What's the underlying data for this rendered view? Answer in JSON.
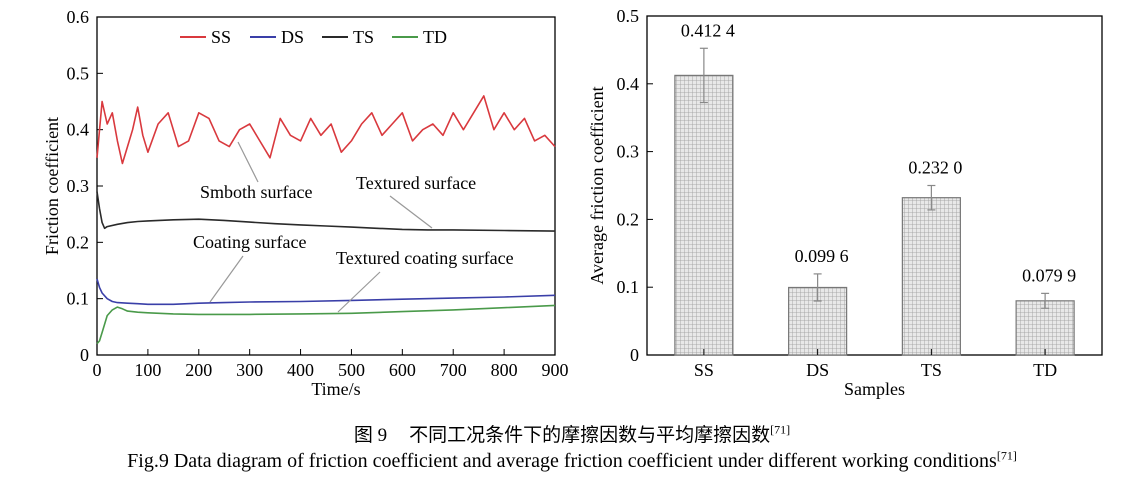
{
  "chart_data": [
    {
      "type": "line",
      "xlabel": "Time/s",
      "ylabel": "Friction coefficient",
      "xlim": [
        0,
        900
      ],
      "ylim": [
        0,
        0.6
      ],
      "xticks": [
        "0",
        "100",
        "200",
        "300",
        "400",
        "500",
        "600",
        "700",
        "800",
        "900"
      ],
      "yticks": [
        "0",
        "0.1",
        "0.2",
        "0.3",
        "0.4",
        "0.5",
        "0.6"
      ],
      "legend_position": "top",
      "series": [
        {
          "name": "SS",
          "color": "#d9393e",
          "x": [
            0,
            10,
            20,
            30,
            40,
            50,
            60,
            70,
            80,
            90,
            100,
            120,
            140,
            160,
            180,
            200,
            220,
            240,
            260,
            280,
            300,
            320,
            340,
            360,
            380,
            400,
            420,
            440,
            460,
            480,
            500,
            520,
            540,
            560,
            580,
            600,
            620,
            640,
            660,
            680,
            700,
            720,
            740,
            760,
            780,
            800,
            820,
            840,
            860,
            880,
            900
          ],
          "values": [
            0.35,
            0.45,
            0.41,
            0.43,
            0.38,
            0.34,
            0.37,
            0.4,
            0.44,
            0.39,
            0.36,
            0.41,
            0.43,
            0.37,
            0.38,
            0.43,
            0.42,
            0.38,
            0.37,
            0.4,
            0.41,
            0.38,
            0.35,
            0.42,
            0.39,
            0.38,
            0.42,
            0.39,
            0.41,
            0.36,
            0.38,
            0.41,
            0.43,
            0.39,
            0.41,
            0.43,
            0.38,
            0.4,
            0.41,
            0.39,
            0.43,
            0.4,
            0.43,
            0.46,
            0.4,
            0.43,
            0.4,
            0.42,
            0.38,
            0.39,
            0.37
          ]
        },
        {
          "name": "DS",
          "color": "#3a3fa8",
          "x": [
            0,
            5,
            10,
            20,
            30,
            40,
            60,
            80,
            100,
            150,
            200,
            250,
            300,
            400,
            500,
            600,
            700,
            800,
            900
          ],
          "values": [
            0.135,
            0.12,
            0.11,
            0.1,
            0.095,
            0.093,
            0.092,
            0.091,
            0.09,
            0.09,
            0.092,
            0.093,
            0.094,
            0.095,
            0.097,
            0.099,
            0.101,
            0.103,
            0.106
          ]
        },
        {
          "name": "TS",
          "color": "#2a2a2a",
          "x": [
            0,
            5,
            10,
            15,
            20,
            40,
            60,
            80,
            100,
            150,
            200,
            250,
            300,
            350,
            400,
            450,
            500,
            550,
            600,
            650,
            700,
            800,
            900
          ],
          "values": [
            0.29,
            0.26,
            0.235,
            0.225,
            0.228,
            0.232,
            0.235,
            0.237,
            0.238,
            0.24,
            0.241,
            0.239,
            0.236,
            0.233,
            0.231,
            0.229,
            0.227,
            0.225,
            0.223,
            0.222,
            0.222,
            0.221,
            0.22
          ]
        },
        {
          "name": "TD",
          "color": "#4a9a4a",
          "x": [
            0,
            5,
            10,
            20,
            30,
            40,
            50,
            60,
            80,
            100,
            150,
            200,
            250,
            300,
            400,
            500,
            600,
            700,
            800,
            900
          ],
          "values": [
            0.02,
            0.025,
            0.04,
            0.07,
            0.08,
            0.085,
            0.082,
            0.078,
            0.076,
            0.075,
            0.073,
            0.072,
            0.072,
            0.072,
            0.073,
            0.074,
            0.077,
            0.08,
            0.084,
            0.088
          ]
        }
      ],
      "annotations": [
        "Smboth surface",
        "Textured surface",
        "Coating surface",
        "Textured coating surface"
      ]
    },
    {
      "type": "bar",
      "xlabel": "Samples",
      "ylabel": "Average friction coefficient",
      "ylim": [
        0,
        0.5
      ],
      "yticks": [
        "0",
        "0.1",
        "0.2",
        "0.3",
        "0.4",
        "0.5"
      ],
      "categories": [
        "SS",
        "DS",
        "TS",
        "TD"
      ],
      "values": [
        0.4124,
        0.0996,
        0.232,
        0.0799
      ],
      "errors": [
        0.04,
        0.02,
        0.018,
        0.011
      ],
      "data_labels": [
        "0.412 4",
        "0.099 6",
        "0.232 0",
        "0.079 9"
      ]
    }
  ],
  "caption": {
    "cn_number": "图 9",
    "cn_text": "不同工况条件下的摩擦因数与平均摩擦因数",
    "cn_ref": "[71]",
    "en_text": "Fig.9 Data diagram of friction coefficient and average friction coefficient under different working conditions",
    "en_ref": "[71]"
  }
}
